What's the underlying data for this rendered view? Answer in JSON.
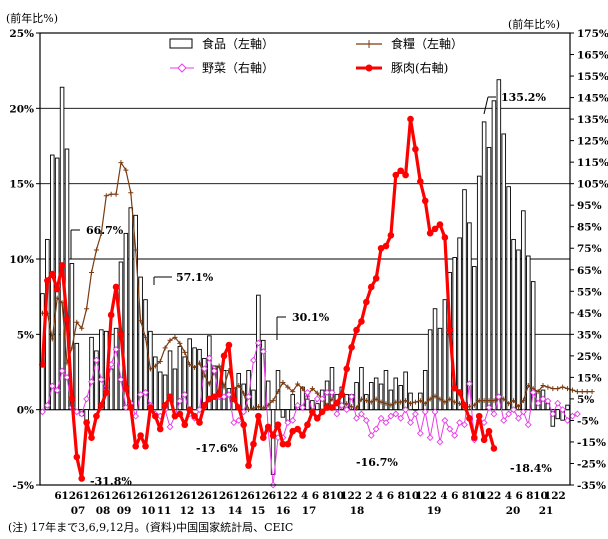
{
  "units": {
    "left": "(前年比%)",
    "right": "(前年比%)"
  },
  "legend": [
    "食品（左軸）",
    "食糧（左軸）",
    "野菜（右軸）",
    "豚肉(右軸)"
  ],
  "annotations": [
    "66.7%",
    "57.1%",
    "-31.8%",
    "-17.6%",
    "30.1%",
    "-16.7%",
    "135.2%",
    "-18.4%"
  ],
  "note": "(注) 17年まで3,6,9,12月。(資料)中国国家統計局、CEIC",
  "colors": {
    "food": "#000000",
    "grain": "#7a3b10",
    "vegetable": "#e83ce8",
    "pork": "#ff0000"
  },
  "chart_data": {
    "type": "bar",
    "title": "",
    "x_tick_labels": [
      "6",
      "12",
      "6",
      "12",
      "6",
      "12",
      "6",
      "12",
      "6",
      "12",
      "6",
      "12",
      "6",
      "12",
      "6",
      "12",
      "6",
      "12",
      "6",
      "12",
      "6",
      "12",
      "2",
      "4",
      "6",
      "8",
      "10",
      "12",
      "2",
      "2",
      "4",
      "6",
      "8",
      "10",
      "12",
      "2",
      "4",
      "6",
      "8",
      "10",
      "12",
      "2",
      "4",
      "6",
      "8",
      "10",
      "12",
      "2"
    ],
    "x_year_labels": [
      "07",
      "08",
      "09",
      "10",
      "11",
      "12",
      "13",
      "14",
      "15",
      "16",
      "17",
      "18",
      "19",
      "20",
      "21"
    ],
    "left_axis": {
      "min": -5,
      "max": 25,
      "step": 5,
      "suffix": "%"
    },
    "right_axis": {
      "min": -35,
      "max": 175,
      "step": 10,
      "suffix": "%"
    },
    "series": [
      {
        "name": "食品（左軸）",
        "axis": "left",
        "type": "bar",
        "values": [
          7.7,
          11.3,
          16.9,
          16.7,
          21.4,
          17.3,
          9.7,
          4.4,
          -0.4,
          -1.0,
          4.8,
          3.9,
          5.3,
          5.2,
          2.7,
          5.4,
          9.8,
          11.7,
          13.4,
          12.9,
          8.8,
          7.3,
          5.2,
          3.5,
          2.5,
          2.3,
          3.9,
          2.7,
          4.2,
          3.5,
          4.7,
          4.1,
          4.0,
          3.4,
          4.9,
          2.9,
          2.9,
          2.6,
          1.4,
          1.4,
          2.4,
          1.7,
          2.6,
          1.3,
          7.6,
          4.6,
          1.9,
          -4.3,
          2.6,
          -0.5,
          -0.9,
          1.0,
          0.3,
          1.5,
          0.7,
          0.6,
          0.4,
          1.3,
          1.9,
          2.8,
          1.0,
          1.5,
          1.0,
          1.0,
          1.8,
          2.8,
          1.0,
          1.8,
          2.1,
          1.7,
          2.6,
          1.3,
          2.1,
          1.6,
          2.5,
          1.1,
          0.0,
          1.1,
          2.6,
          5.3,
          6.7,
          5.4,
          7.3,
          9.1,
          10.1,
          11.4,
          14.6,
          12.4,
          9.5,
          15.5,
          19.1,
          17.4,
          20.5,
          21.9,
          18.3,
          14.8,
          11.3,
          10.6,
          13.2,
          10.2,
          8.5,
          1.2,
          1.3,
          0.4,
          -1.1,
          -0.6,
          -0.7,
          0.3
        ]
      },
      {
        "name": "食糧（左軸）",
        "axis": "left",
        "type": "line",
        "values": [
          6.4,
          6.4,
          4.7,
          7.4,
          7.1,
          3.1,
          4.1,
          5.8,
          5.4,
          6.7,
          9.1,
          10.6,
          11.7,
          14.2,
          14.3,
          14.3,
          16.4,
          15.9,
          14.4,
          10.6,
          5.9,
          4.8,
          2.7,
          2.9,
          3.2,
          4.1,
          4.6,
          4.8,
          4.4,
          3.8,
          3.0,
          2.8,
          3.1,
          2.3,
          1.7,
          2.5,
          2.9,
          1.5,
          2.6,
          1.4,
          1.6,
          1.1,
          0.0,
          0.1,
          0.2,
          0.1,
          0.3,
          0.6,
          1.2,
          1.8,
          1.5,
          1.2,
          1.7,
          1.4,
          0.9,
          1.4,
          1.1,
          0.7,
          0.3,
          0.7,
          0.5,
          0.2,
          0.4,
          0.2,
          0.1,
          0.7,
          0.6,
          0.5,
          0.7,
          0.5,
          0.4,
          0.3,
          0.5,
          0.5,
          0.6,
          0.4,
          0.5,
          0.6,
          0.4,
          0.7,
          0.9,
          0.7,
          0.5,
          0.7,
          0.5,
          0.4,
          0.1,
          0.2,
          0.3,
          0.6,
          0.6,
          0.6,
          0.6,
          0.8,
          0.7,
          0.4,
          0.6,
          0.2,
          0.6,
          1.6,
          1.4,
          1.2,
          1.6,
          1.5,
          1.4,
          1.4,
          1.5,
          1.4,
          1.3,
          1.2,
          1.2,
          1.2,
          1.2
        ]
      },
      {
        "name": "野菜（右軸）",
        "axis": "right",
        "type": "line",
        "values": [
          -1,
          2,
          11,
          9,
          18,
          15,
          1,
          -1,
          -2,
          5,
          13,
          23,
          14,
          9,
          21,
          28,
          14,
          1,
          3,
          -3,
          7,
          8,
          2,
          -2,
          -3,
          0,
          -8,
          -3,
          4,
          7,
          -2,
          -4,
          0,
          19,
          24,
          18,
          6,
          6,
          7,
          -6,
          -5,
          -1,
          6,
          23,
          31,
          27,
          -9,
          -35,
          -13,
          -13,
          -6,
          -5,
          2,
          1,
          8,
          -1,
          5,
          5,
          8,
          8,
          -2,
          2,
          0,
          6,
          -4,
          -2,
          -5,
          -12,
          -9,
          -4,
          -6,
          -3,
          -2,
          -4,
          0,
          -6,
          -2,
          -11,
          -1,
          -13,
          -1,
          -15,
          -5,
          -9,
          -12,
          -6,
          -7,
          12,
          -14,
          -5,
          -6,
          1,
          -2,
          6,
          -5,
          -2,
          0,
          -4,
          -1,
          -7,
          8,
          3,
          5,
          4,
          -2,
          3,
          0,
          -5,
          -3,
          -2
        ]
      },
      {
        "name": "豚肉(右軸)",
        "axis": "right",
        "type": "line",
        "values": [
          21,
          60,
          63,
          56,
          67,
          42,
          5,
          -22,
          -32,
          -6,
          -13,
          -3,
          2,
          8,
          44,
          57,
          35,
          10,
          1,
          -17,
          -12,
          -17,
          1,
          -3,
          -9,
          2,
          6,
          -3,
          -2,
          -7,
          0,
          -3,
          -6,
          2,
          5,
          6,
          7,
          25,
          30,
          5,
          1,
          -7,
          -26,
          -16,
          -3,
          -13,
          -8,
          -12,
          -7,
          -16,
          -16,
          -10,
          -9,
          -12,
          -7,
          -1,
          -4,
          -1,
          1,
          1,
          3,
          7,
          19,
          29,
          37,
          41,
          50,
          57,
          61,
          75,
          76,
          81,
          109,
          111,
          109,
          135,
          121,
          106,
          97,
          82,
          84,
          86,
          80,
          37,
          10,
          8,
          2,
          -4,
          -13,
          -3,
          -14,
          -10,
          -18
        ]
      }
    ],
    "annotations": [
      {
        "text": "66.7%"
      },
      {
        "text": "57.1%"
      },
      {
        "text": "-31.8%"
      },
      {
        "text": "-17.6%"
      },
      {
        "text": "30.1%"
      },
      {
        "text": "-16.7%"
      },
      {
        "text": "135.2%"
      },
      {
        "text": "-18.4%"
      }
    ]
  }
}
